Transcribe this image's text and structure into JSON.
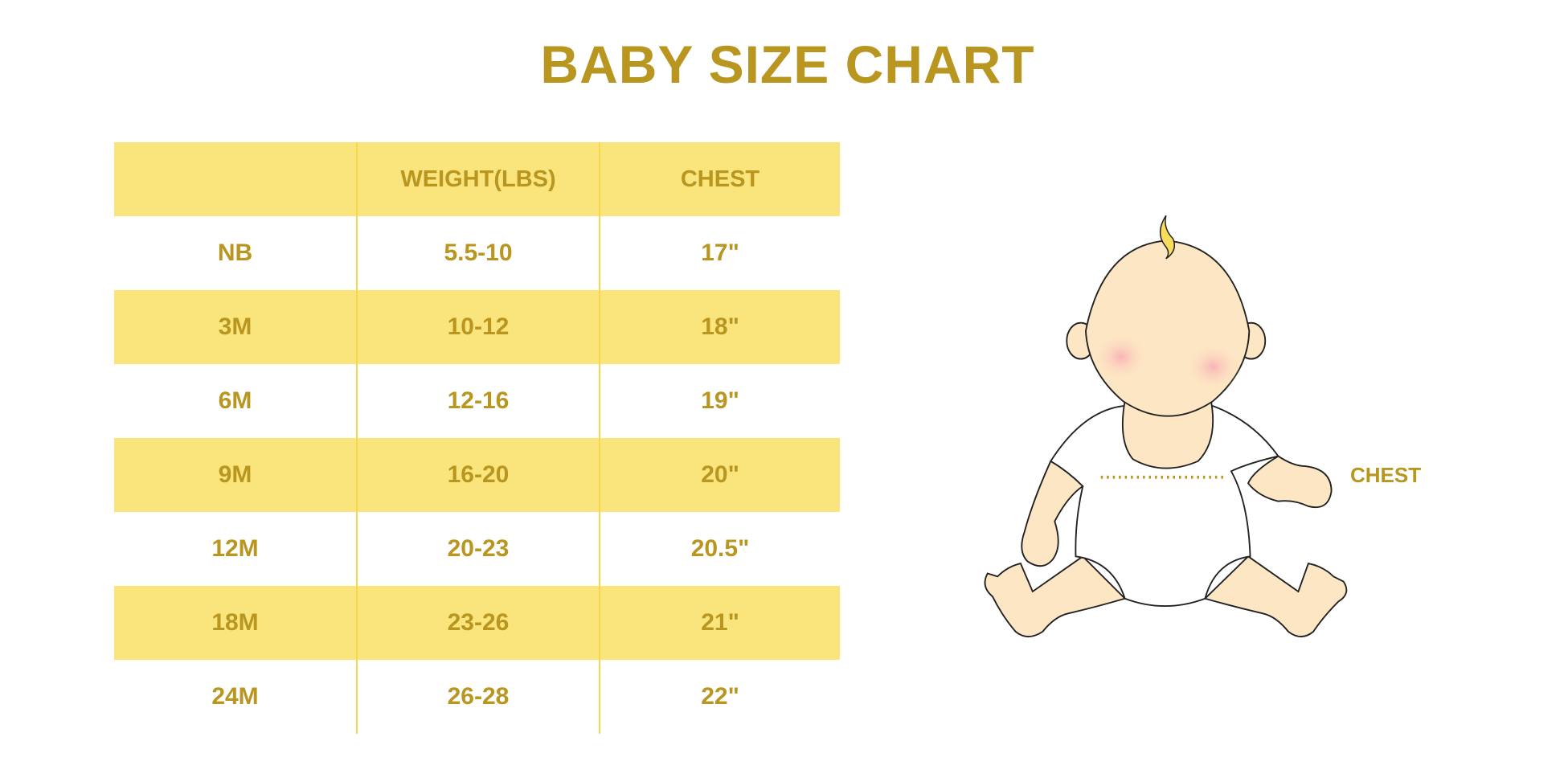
{
  "title": "BABY SIZE CHART",
  "colors": {
    "text": "#b8961f",
    "row_fill": "#fae47c",
    "divider": "#f6d84a",
    "skin": "#fde6c3",
    "cheek": "#f9b3b8",
    "hair": "#f8dc5c"
  },
  "table": {
    "headers": [
      "",
      "WEIGHT(LBS)",
      "CHEST"
    ],
    "rows": [
      {
        "size": "NB",
        "weight": "5.5-10",
        "chest": "17\""
      },
      {
        "size": "3M",
        "weight": "10-12",
        "chest": "18\""
      },
      {
        "size": "6M",
        "weight": "12-16",
        "chest": "19\""
      },
      {
        "size": "9M",
        "weight": "16-20",
        "chest": "20\""
      },
      {
        "size": "12M",
        "weight": "20-23",
        "chest": "20.5\""
      },
      {
        "size": "18M",
        "weight": "23-26",
        "chest": "21\""
      },
      {
        "size": "24M",
        "weight": "26-28",
        "chest": "22\""
      }
    ]
  },
  "illustration": {
    "chest_label": "CHEST"
  }
}
